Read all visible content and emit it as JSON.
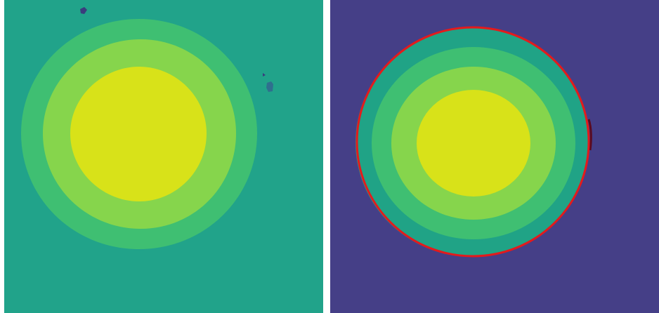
{
  "colors": {
    "background_teal": "#21a38a",
    "background_purple": "#453f87",
    "level_1": "#20a386",
    "level_2": "#3fbf72",
    "level_3": "#86d54c",
    "level_4": "#d8e219",
    "outline_red": "#e41a1c",
    "speck_dark": "#3a3d7d",
    "speck_blue": "#2f6f8e"
  },
  "panels": [
    {
      "name": "left-contour-panel",
      "background": "teal",
      "outline": false
    },
    {
      "name": "right-contour-panel",
      "background": "purple",
      "outline": true
    }
  ]
}
